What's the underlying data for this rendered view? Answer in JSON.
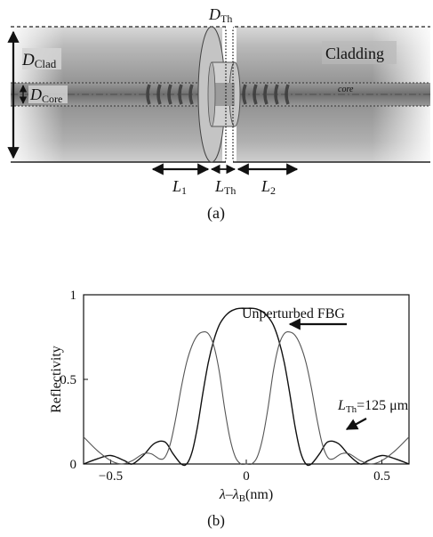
{
  "figure_a": {
    "label_d_clad_main": "D",
    "label_d_clad_sub": "Clad",
    "label_d_core_main": "D",
    "label_d_core_sub": "Core",
    "label_d_th_main": "D",
    "label_d_th_sub": "Th",
    "label_cladding": "Cladding",
    "label_core": "core",
    "label_l1_main": "L",
    "label_l1_sub": "1",
    "label_lth_main": "L",
    "label_lth_sub": "Th",
    "label_l2_main": "L",
    "label_l2_sub": "2",
    "caption": "(a)"
  },
  "figure_b": {
    "caption": "(b)",
    "annotation_unperturbed": "Unperturbed FBG",
    "annotation_lth_main": "L",
    "annotation_lth_sub": "Th",
    "annotation_lth_value": "=125 μm",
    "xlabel_parts": [
      "λ–λ",
      "B",
      "(nm)"
    ],
    "chart_data": {
      "type": "line",
      "title": "",
      "xlabel": "λ–λB(nm)",
      "ylabel": "Reflectivity",
      "xlim": [
        -0.6,
        0.6
      ],
      "ylim": [
        0,
        1
      ],
      "xticks": [
        -0.5,
        0,
        0.5
      ],
      "xtick_labels": [
        "−0.5",
        "0",
        "0.5"
      ],
      "yticks": [
        0,
        0.5,
        1
      ],
      "ytick_labels": [
        "0",
        "0.5",
        "1"
      ],
      "series": [
        {
          "name": "Unperturbed FBG",
          "color": "#111111",
          "x": [
            -0.6,
            -0.55,
            -0.5,
            -0.45,
            -0.42,
            -0.38,
            -0.34,
            -0.3,
            -0.27,
            -0.24,
            -0.22,
            -0.2,
            -0.18,
            -0.16,
            -0.14,
            -0.12,
            -0.1,
            -0.08,
            -0.06,
            -0.04,
            -0.02,
            0,
            0.02,
            0.04,
            0.06,
            0.08,
            0.1,
            0.12,
            0.14,
            0.16,
            0.18,
            0.2,
            0.22,
            0.24,
            0.27,
            0.3,
            0.34,
            0.38,
            0.42,
            0.45,
            0.5,
            0.55,
            0.6
          ],
          "y": [
            0.0,
            0.03,
            0.05,
            0.02,
            0.0,
            0.05,
            0.12,
            0.13,
            0.06,
            0.0,
            0.0,
            0.07,
            0.22,
            0.42,
            0.6,
            0.73,
            0.82,
            0.87,
            0.9,
            0.915,
            0.92,
            0.92,
            0.92,
            0.915,
            0.9,
            0.87,
            0.82,
            0.73,
            0.6,
            0.42,
            0.22,
            0.07,
            0.0,
            0.0,
            0.06,
            0.13,
            0.12,
            0.05,
            0.0,
            0.02,
            0.05,
            0.03,
            0.0
          ]
        },
        {
          "name": "LTh=125 μm",
          "color": "#555555",
          "x": [
            -0.6,
            -0.55,
            -0.5,
            -0.46,
            -0.42,
            -0.38,
            -0.35,
            -0.32,
            -0.3,
            -0.28,
            -0.26,
            -0.24,
            -0.22,
            -0.2,
            -0.18,
            -0.16,
            -0.14,
            -0.12,
            -0.1,
            -0.08,
            -0.06,
            -0.04,
            -0.02,
            0,
            0.02,
            0.04,
            0.06,
            0.08,
            0.1,
            0.12,
            0.14,
            0.16,
            0.18,
            0.2,
            0.22,
            0.24,
            0.26,
            0.28,
            0.3,
            0.32,
            0.35,
            0.38,
            0.42,
            0.46,
            0.5,
            0.55,
            0.6
          ],
          "y": [
            0.16,
            0.08,
            0.02,
            0.0,
            0.02,
            0.06,
            0.06,
            0.03,
            0.04,
            0.12,
            0.27,
            0.45,
            0.6,
            0.7,
            0.76,
            0.78,
            0.77,
            0.7,
            0.55,
            0.33,
            0.15,
            0.04,
            0.0,
            0.0,
            0.0,
            0.04,
            0.15,
            0.33,
            0.55,
            0.7,
            0.77,
            0.78,
            0.76,
            0.7,
            0.6,
            0.45,
            0.27,
            0.12,
            0.04,
            0.03,
            0.06,
            0.06,
            0.02,
            0.0,
            0.02,
            0.08,
            0.16
          ]
        }
      ]
    }
  }
}
